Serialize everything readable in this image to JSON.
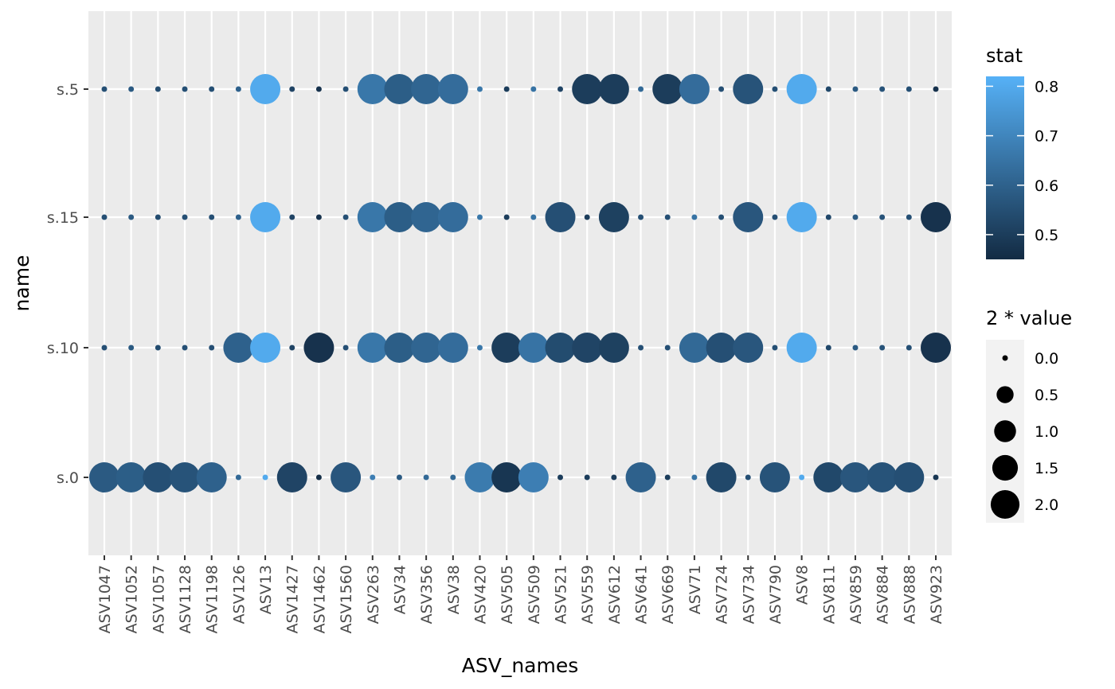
{
  "chart_data": {
    "type": "scatter",
    "xlabel": "ASV_names",
    "ylabel": "name",
    "x_categories": [
      "ASV1047",
      "ASV1052",
      "ASV1057",
      "ASV1128",
      "ASV1198",
      "ASV126",
      "ASV13",
      "ASV1427",
      "ASV1462",
      "ASV1560",
      "ASV263",
      "ASV34",
      "ASV356",
      "ASV38",
      "ASV420",
      "ASV505",
      "ASV509",
      "ASV521",
      "ASV559",
      "ASV612",
      "ASV641",
      "ASV669",
      "ASV71",
      "ASV724",
      "ASV734",
      "ASV790",
      "ASV8",
      "ASV811",
      "ASV859",
      "ASV884",
      "ASV888",
      "ASV923"
    ],
    "y_categories": [
      "s.0",
      "s.10",
      "s.15",
      "s.5"
    ],
    "grid": true,
    "legend_placement": "right",
    "color_legend": {
      "title": "stat",
      "ticks": [
        "0.5",
        "0.6",
        "0.7",
        "0.8"
      ],
      "tick_values": [
        0.5,
        0.6,
        0.7,
        0.8
      ],
      "range": [
        0.45,
        0.82
      ],
      "low_color": "#132B43",
      "high_color": "#56B1F7"
    },
    "size_legend": {
      "title": "2 * value",
      "labels": [
        "0.0",
        "0.5",
        "1.0",
        "1.5",
        "2.0"
      ],
      "values": [
        0,
        0.5,
        1,
        1.5,
        2
      ]
    },
    "series": [
      {
        "y": "s.0",
        "size": [
          2,
          2,
          2,
          2,
          2,
          0,
          0,
          2,
          0,
          2,
          0,
          0,
          0,
          0,
          2,
          2,
          2,
          0,
          0,
          0,
          2,
          0,
          0,
          2,
          0,
          2,
          0,
          2,
          2,
          2,
          2,
          0
        ],
        "stat": [
          0.58,
          0.59,
          0.55,
          0.56,
          0.6,
          0.62,
          0.8,
          0.52,
          0.46,
          0.57,
          0.68,
          0.58,
          0.62,
          0.62,
          0.67,
          0.48,
          0.68,
          0.5,
          0.5,
          0.5,
          0.6,
          0.5,
          0.65,
          0.53,
          0.55,
          0.56,
          0.8,
          0.53,
          0.57,
          0.56,
          0.55,
          0.48
        ]
      },
      {
        "y": "s.10",
        "size": [
          0,
          0,
          0,
          0,
          0,
          2,
          2,
          0,
          2,
          0,
          2,
          2,
          2,
          2,
          0,
          2,
          2,
          2,
          2,
          2,
          0,
          0,
          2,
          2,
          2,
          0,
          2,
          0,
          0,
          0,
          0,
          2
        ],
        "stat": [
          0.55,
          0.58,
          0.54,
          0.55,
          0.55,
          0.6,
          0.8,
          0.52,
          0.47,
          0.55,
          0.66,
          0.59,
          0.61,
          0.63,
          0.66,
          0.5,
          0.65,
          0.54,
          0.52,
          0.51,
          0.55,
          0.55,
          0.62,
          0.55,
          0.57,
          0.55,
          0.8,
          0.53,
          0.58,
          0.56,
          0.55,
          0.47
        ]
      },
      {
        "y": "s.15",
        "size": [
          0,
          0,
          0,
          0,
          0,
          0,
          2,
          0,
          0,
          0,
          2,
          2,
          2,
          2,
          0,
          0,
          0,
          2,
          0,
          2,
          0,
          0,
          0,
          0,
          2,
          0,
          2,
          0,
          0,
          0,
          0,
          2
        ],
        "stat": [
          0.55,
          0.58,
          0.54,
          0.55,
          0.55,
          0.6,
          0.8,
          0.52,
          0.47,
          0.55,
          0.66,
          0.59,
          0.61,
          0.63,
          0.66,
          0.5,
          0.65,
          0.55,
          0.5,
          0.51,
          0.55,
          0.55,
          0.65,
          0.55,
          0.57,
          0.55,
          0.8,
          0.53,
          0.58,
          0.56,
          0.55,
          0.47
        ]
      },
      {
        "y": "s.5",
        "size": [
          0,
          0,
          0,
          0,
          0,
          0,
          2,
          0,
          0,
          0,
          2,
          2,
          2,
          2,
          0,
          0,
          0,
          0,
          2,
          2,
          0,
          2,
          2,
          0,
          2,
          0,
          2,
          0,
          0,
          0,
          0,
          0
        ],
        "stat": [
          0.55,
          0.58,
          0.54,
          0.55,
          0.55,
          0.6,
          0.8,
          0.52,
          0.47,
          0.55,
          0.66,
          0.59,
          0.61,
          0.63,
          0.66,
          0.5,
          0.65,
          0.52,
          0.5,
          0.5,
          0.62,
          0.5,
          0.63,
          0.55,
          0.56,
          0.55,
          0.8,
          0.53,
          0.58,
          0.56,
          0.55,
          0.47
        ]
      }
    ]
  }
}
